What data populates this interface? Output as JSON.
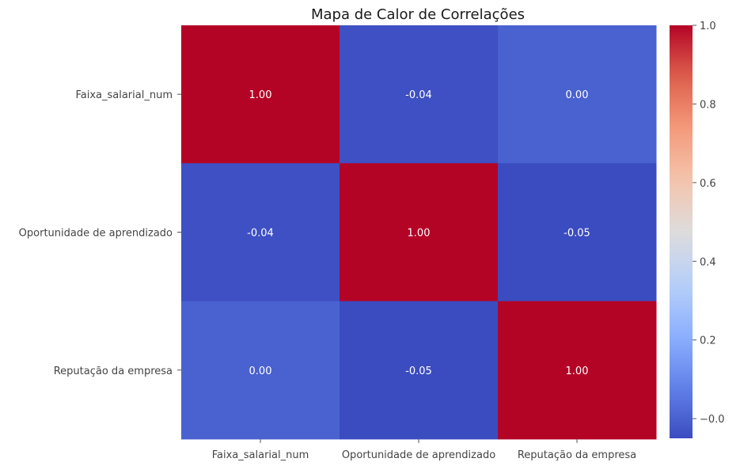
{
  "chart_data": {
    "type": "heatmap",
    "title": "Mapa de Calor de Correlações",
    "xlabel": "",
    "ylabel": "",
    "x_labels": [
      "Faixa_salarial_num",
      "Oportunidade de aprendizado",
      "Reputação da empresa"
    ],
    "y_labels": [
      "Faixa_salarial_num",
      "Oportunidade de aprendizado",
      "Reputação da empresa"
    ],
    "values": [
      [
        1.0,
        -0.04,
        0.0
      ],
      [
        -0.04,
        1.0,
        -0.05
      ],
      [
        0.0,
        -0.05,
        1.0
      ]
    ],
    "annotation_format": "0.00",
    "colormap": "coolwarm",
    "vmin": -0.05,
    "vmax": 1.0,
    "colorbar": {
      "ticks": [
        0.0,
        0.2,
        0.4,
        0.6,
        0.8,
        1.0
      ],
      "tick_labels": [
        "−0.0",
        "0.2",
        "0.4",
        "0.6",
        "0.8",
        "1.0"
      ]
    },
    "grid": false,
    "legend": "colorbar-right"
  }
}
